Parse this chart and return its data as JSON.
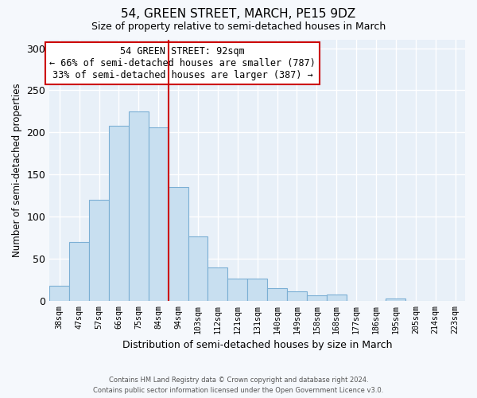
{
  "title": "54, GREEN STREET, MARCH, PE15 9DZ",
  "subtitle": "Size of property relative to semi-detached houses in March",
  "xlabel": "Distribution of semi-detached houses by size in March",
  "ylabel": "Number of semi-detached properties",
  "categories": [
    "38sqm",
    "47sqm",
    "57sqm",
    "66sqm",
    "75sqm",
    "84sqm",
    "94sqm",
    "103sqm",
    "112sqm",
    "121sqm",
    "131sqm",
    "140sqm",
    "149sqm",
    "158sqm",
    "168sqm",
    "177sqm",
    "186sqm",
    "195sqm",
    "205sqm",
    "214sqm",
    "223sqm"
  ],
  "values": [
    18,
    70,
    120,
    208,
    225,
    206,
    135,
    76,
    40,
    26,
    26,
    15,
    11,
    6,
    7,
    0,
    0,
    3,
    0,
    0,
    0
  ],
  "bar_color": "#c8dff0",
  "bar_edge_color": "#7bafd4",
  "vline_x": 6,
  "vline_color": "#cc0000",
  "annotation_title": "54 GREEN STREET: 92sqm",
  "annotation_line1": "← 66% of semi-detached houses are smaller (787)",
  "annotation_line2": "33% of semi-detached houses are larger (387) →",
  "annotation_box_color": "#ffffff",
  "annotation_box_edge_color": "#cc0000",
  "ylim": [
    0,
    310
  ],
  "yticks": [
    0,
    50,
    100,
    150,
    200,
    250,
    300
  ],
  "footer_line1": "Contains HM Land Registry data © Crown copyright and database right 2024.",
  "footer_line2": "Contains public sector information licensed under the Open Government Licence v3.0.",
  "background_color": "#f5f8fc",
  "plot_background_color": "#e8f0f8",
  "grid_color": "#ffffff"
}
